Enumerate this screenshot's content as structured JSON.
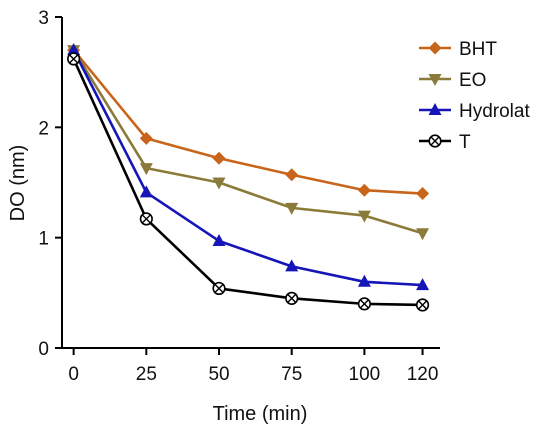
{
  "chart_data": {
    "type": "line",
    "title": "",
    "xlabel": "Time (min)",
    "ylabel": "DO (nm)",
    "x": [
      0,
      25,
      50,
      75,
      100,
      120
    ],
    "xticks": [
      "0",
      "25",
      "50",
      "75",
      "100",
      "120"
    ],
    "yticks": [
      "0",
      "1",
      "2",
      "3"
    ],
    "xlim": [
      -4,
      126
    ],
    "ylim": [
      0,
      3
    ],
    "grid": false,
    "legend": "top-right",
    "series": [
      {
        "name": "BHT",
        "color": "#C8651B",
        "marker": "diamond",
        "values": [
          2.7,
          1.9,
          1.72,
          1.57,
          1.43,
          1.4
        ]
      },
      {
        "name": "EO",
        "color": "#8B7B3A",
        "marker": "triangle-down",
        "values": [
          2.7,
          1.63,
          1.5,
          1.27,
          1.2,
          1.04
        ]
      },
      {
        "name": "Hydrolat",
        "color": "#1515B8",
        "marker": "triangle-up",
        "values": [
          2.7,
          1.41,
          0.97,
          0.74,
          0.6,
          0.57
        ]
      },
      {
        "name": "T",
        "color": "#000000",
        "marker": "circle-x",
        "values": [
          2.62,
          1.17,
          0.54,
          0.45,
          0.4,
          0.39
        ]
      }
    ]
  }
}
